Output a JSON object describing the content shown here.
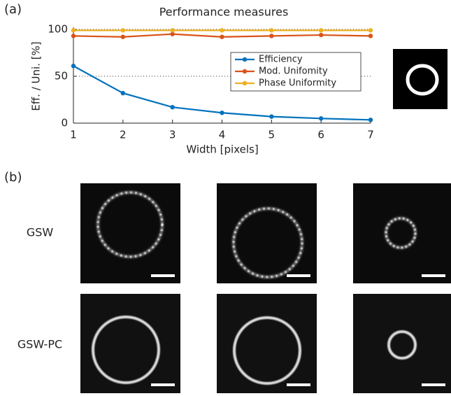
{
  "panel_labels": [
    "(a)",
    "(b)"
  ],
  "row_labels": [
    "GSW",
    "GSW-PC"
  ],
  "chart_data": {
    "type": "line",
    "title": "Performance measures",
    "x_label": "Width [pixels]",
    "y_label": "Eff. / Uni. [%]",
    "x": [
      1,
      2,
      3,
      4,
      5,
      6,
      7
    ],
    "series": [
      {
        "name": "Efficiency",
        "color": "#0072bd",
        "values": [
          61,
          32,
          17,
          11,
          7,
          5,
          3.5
        ]
      },
      {
        "name": "Mod. Unifomity",
        "color": "#d95319",
        "values": [
          93,
          92,
          95,
          92,
          93,
          94,
          93
        ]
      },
      {
        "name": "Phase Uniformity",
        "color": "#edb120",
        "values": [
          99,
          99,
          99,
          99,
          99,
          99,
          99
        ]
      }
    ],
    "xlim": [
      1,
      7
    ],
    "xticks": [
      1,
      2,
      3,
      4,
      5,
      6,
      7
    ],
    "ylim": [
      0,
      100
    ],
    "yticks": [
      0,
      50,
      100
    ],
    "reference_lines": [
      50,
      100
    ],
    "legend": "upper right"
  }
}
